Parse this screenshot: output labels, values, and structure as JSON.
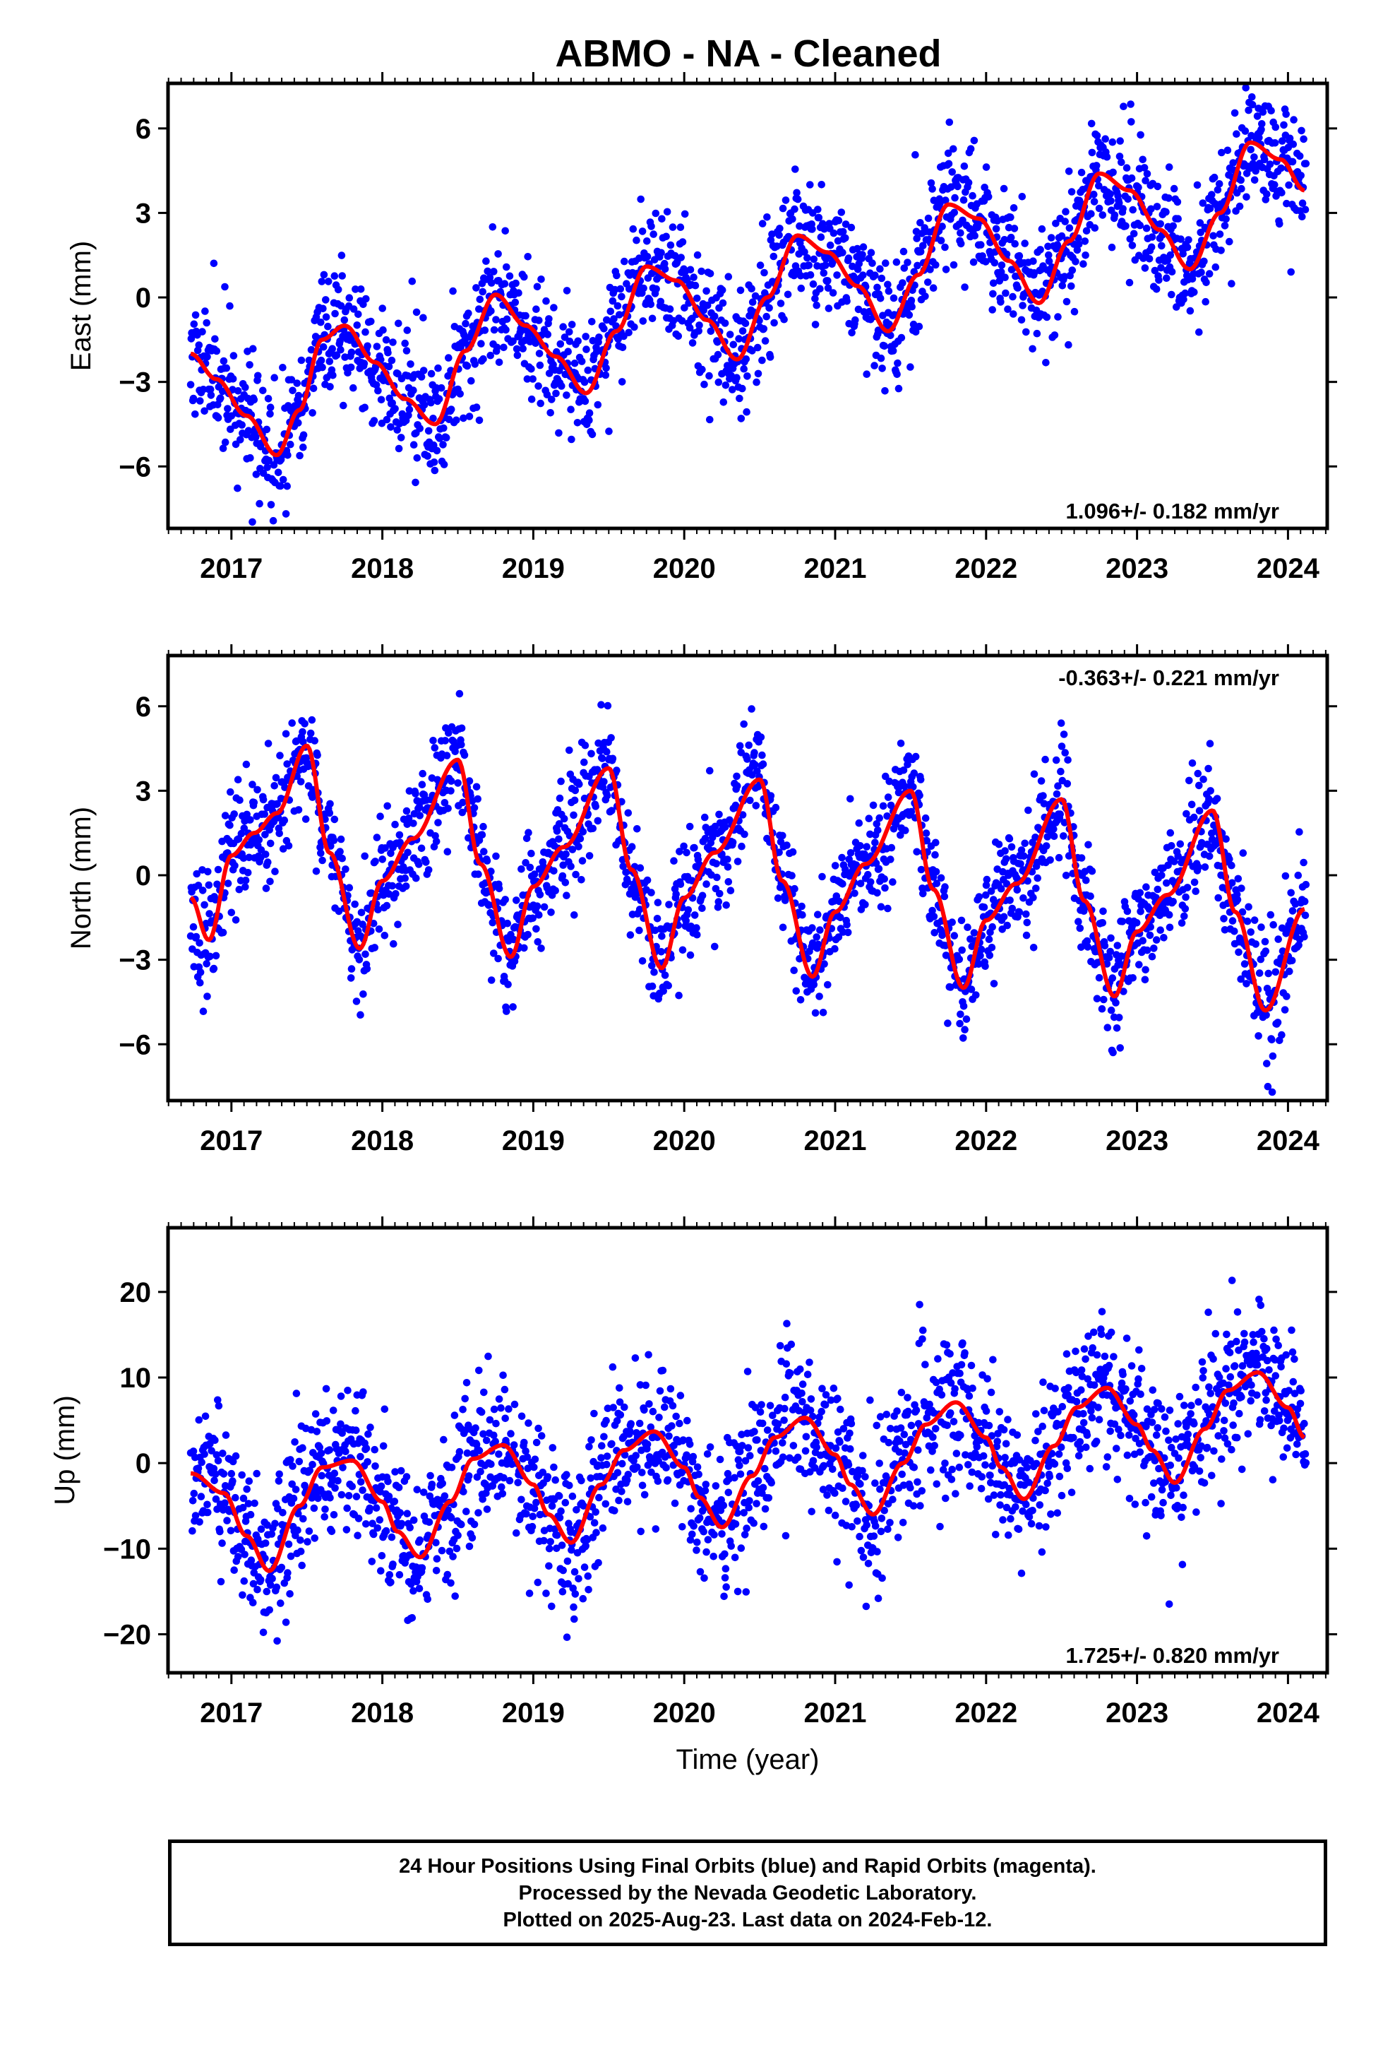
{
  "title": "ABMO  - NA - Cleaned",
  "footer": {
    "line1": "24 Hour Positions Using Final Orbits (blue) and Rapid Orbits (magenta).",
    "line2": "Processed by the Nevada Geodetic Laboratory.",
    "line3": "Plotted on 2025-Aug-23. Last data on 2024-Feb-12."
  },
  "colors": {
    "points": "#0000ff",
    "fit": "#ff0000",
    "frame": "#000000"
  },
  "chart_data": [
    {
      "type": "scatter",
      "ylabel": "East (mm)",
      "xlabel": "",
      "xlim": [
        2016.58,
        2024.26
      ],
      "ylim": [
        -8.2,
        7.6
      ],
      "yticks": [
        -6,
        -3,
        0,
        3,
        6
      ],
      "xticks": [
        2017,
        2018,
        2019,
        2020,
        2021,
        2022,
        2023,
        2024
      ],
      "annotation": "1.096+/- 0.182 mm/yr",
      "annotation_pos": "bottom-right",
      "series": [
        {
          "kind": "fit",
          "x": [
            2016.73,
            2016.9,
            2017.1,
            2017.3,
            2017.45,
            2017.6,
            2017.75,
            2017.95,
            2018.15,
            2018.35,
            2018.55,
            2018.75,
            2018.95,
            2019.15,
            2019.35,
            2019.55,
            2019.75,
            2019.95,
            2020.15,
            2020.35,
            2020.55,
            2020.75,
            2020.95,
            2021.15,
            2021.35,
            2021.55,
            2021.75,
            2021.95,
            2022.15,
            2022.35,
            2022.55,
            2022.75,
            2022.95,
            2023.15,
            2023.35,
            2023.55,
            2023.75,
            2023.95,
            2024.11
          ],
          "y": [
            -2.0,
            -2.9,
            -4.2,
            -5.6,
            -4.0,
            -1.5,
            -1.0,
            -2.3,
            -3.6,
            -4.5,
            -1.9,
            0.1,
            -1.0,
            -2.1,
            -3.4,
            -1.2,
            1.1,
            0.6,
            -0.8,
            -2.2,
            0.0,
            2.2,
            1.6,
            0.4,
            -1.2,
            0.8,
            3.3,
            2.8,
            1.3,
            -0.2,
            2.0,
            4.4,
            3.8,
            2.4,
            1.0,
            3.0,
            5.5,
            4.9,
            3.8
          ]
        }
      ],
      "scatter_params": {
        "density": 0.75,
        "noise": 1.15,
        "seed": 11,
        "x_start": 2016.73,
        "x_end": 2024.12
      }
    },
    {
      "type": "scatter",
      "ylabel": "North (mm)",
      "xlabel": "",
      "xlim": [
        2016.58,
        2024.26
      ],
      "ylim": [
        -8.0,
        7.8
      ],
      "yticks": [
        -6,
        -3,
        0,
        3,
        6
      ],
      "xticks": [
        2017,
        2018,
        2019,
        2020,
        2021,
        2022,
        2023,
        2024
      ],
      "annotation": "-0.363+/- 0.221 mm/yr",
      "annotation_pos": "top-right",
      "series": [
        {
          "kind": "fit",
          "x": [
            2016.73,
            2016.85,
            2017.0,
            2017.15,
            2017.3,
            2017.5,
            2017.65,
            2017.85,
            2018.0,
            2018.2,
            2018.5,
            2018.65,
            2018.85,
            2019.0,
            2019.2,
            2019.5,
            2019.65,
            2019.85,
            2020.0,
            2020.2,
            2020.5,
            2020.65,
            2020.85,
            2021.0,
            2021.2,
            2021.5,
            2021.65,
            2021.85,
            2022.0,
            2022.2,
            2022.5,
            2022.65,
            2022.85,
            2023.0,
            2023.2,
            2023.5,
            2023.65,
            2023.85,
            2024.11
          ],
          "y": [
            -0.8,
            -2.3,
            0.7,
            1.5,
            2.2,
            4.6,
            0.8,
            -2.6,
            -0.2,
            1.3,
            4.1,
            0.4,
            -2.9,
            -0.4,
            1.0,
            3.8,
            0.2,
            -3.3,
            -0.8,
            0.8,
            3.4,
            -0.2,
            -3.6,
            -1.3,
            0.4,
            3.0,
            -0.5,
            -4.0,
            -1.6,
            -0.3,
            2.7,
            -0.9,
            -4.3,
            -2.0,
            -0.7,
            2.3,
            -1.3,
            -4.8,
            -1.2
          ]
        }
      ],
      "scatter_params": {
        "density": 0.75,
        "noise": 1.05,
        "seed": 23,
        "x_start": 2016.73,
        "x_end": 2024.12
      }
    },
    {
      "type": "scatter",
      "ylabel": "Up (mm)",
      "xlabel": "Time (year)",
      "xlim": [
        2016.58,
        2024.26
      ],
      "ylim": [
        -24.5,
        27.5
      ],
      "yticks": [
        -20,
        -10,
        0,
        10,
        20
      ],
      "xticks": [
        2017,
        2018,
        2019,
        2020,
        2021,
        2022,
        2023,
        2024
      ],
      "annotation": "1.725+/- 0.820 mm/yr",
      "annotation_pos": "bottom-right",
      "series": [
        {
          "kind": "fit",
          "x": [
            2016.73,
            2016.95,
            2017.1,
            2017.25,
            2017.45,
            2017.6,
            2017.8,
            2018.0,
            2018.1,
            2018.25,
            2018.45,
            2018.6,
            2018.8,
            2019.0,
            2019.1,
            2019.25,
            2019.45,
            2019.6,
            2019.8,
            2020.0,
            2020.1,
            2020.25,
            2020.45,
            2020.6,
            2020.8,
            2021.0,
            2021.1,
            2021.25,
            2021.45,
            2021.6,
            2021.8,
            2022.0,
            2022.1,
            2022.25,
            2022.45,
            2022.6,
            2022.8,
            2023.0,
            2023.1,
            2023.25,
            2023.45,
            2023.6,
            2023.8,
            2024.0,
            2024.11
          ],
          "y": [
            -1.2,
            -3.5,
            -8.5,
            -12.6,
            -5.0,
            -0.5,
            0.3,
            -4.5,
            -8.0,
            -11.0,
            -4.5,
            0.5,
            2.1,
            -2.5,
            -6.0,
            -9.3,
            -2.5,
            1.5,
            3.7,
            -0.5,
            -4.0,
            -7.5,
            -1.5,
            3.0,
            5.3,
            1.0,
            -2.5,
            -6.0,
            0.0,
            4.5,
            7.1,
            3.0,
            -0.5,
            -4.2,
            2.0,
            6.5,
            8.8,
            4.5,
            1.5,
            -2.3,
            4.0,
            8.5,
            10.6,
            6.5,
            3.0
          ]
        }
      ],
      "scatter_params": {
        "density": 0.75,
        "noise": 4.4,
        "seed": 37,
        "x_start": 2016.73,
        "x_end": 2024.12
      }
    }
  ]
}
